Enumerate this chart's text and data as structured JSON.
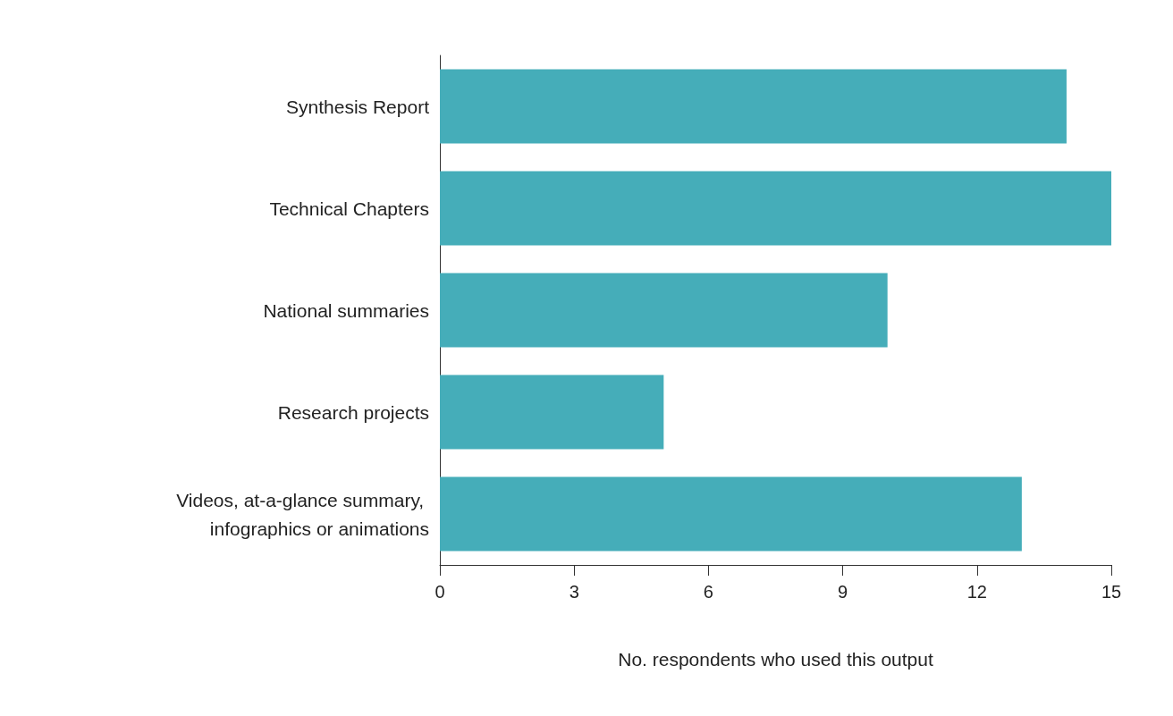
{
  "chart_data": {
    "type": "bar",
    "orientation": "horizontal",
    "xlabel": "No. respondents who used this output",
    "categories": [
      "Synthesis Report",
      "Technical Chapters",
      "National summaries",
      "Research projects",
      "Videos, at-a-glance summary, infographics or animations"
    ],
    "values": [
      14,
      15,
      10,
      5,
      13
    ],
    "color": "#45adb9",
    "xlim": [
      0,
      15
    ],
    "xticks": [
      0,
      3,
      6,
      9,
      12,
      15
    ],
    "grid": false
  }
}
